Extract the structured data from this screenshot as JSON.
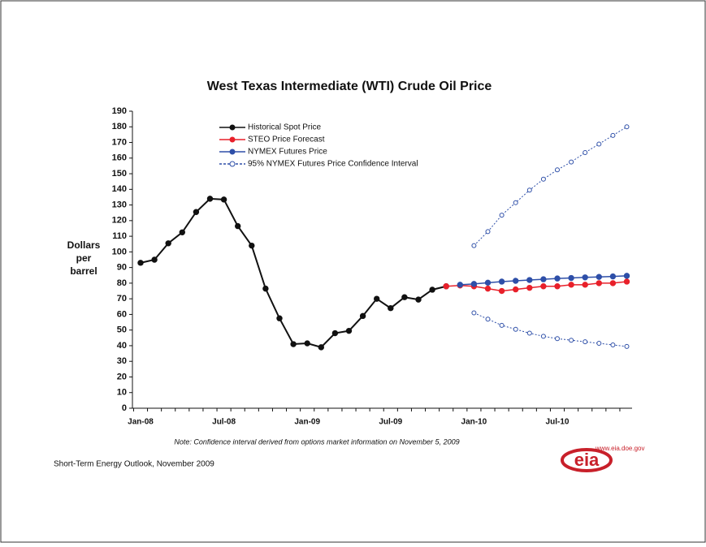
{
  "chart_data": {
    "type": "line",
    "title": "West Texas Intermediate (WTI) Crude Oil Price",
    "y_label": [
      "Dollars",
      "per",
      "barrel"
    ],
    "categories": [
      "Jan-08",
      null,
      null,
      null,
      null,
      null,
      "Jul-08",
      null,
      null,
      null,
      null,
      null,
      "Jan-09",
      null,
      null,
      null,
      null,
      null,
      "Jul-09",
      null,
      null,
      null,
      null,
      null,
      "Jan-10",
      null,
      null,
      null,
      null,
      null,
      "Jul-10",
      null,
      null,
      null,
      null,
      null
    ],
    "ylim": [
      0,
      190
    ],
    "yticks": [
      0,
      10,
      20,
      30,
      40,
      50,
      60,
      70,
      80,
      90,
      100,
      110,
      120,
      130,
      140,
      150,
      160,
      170,
      180,
      190
    ],
    "grid": false,
    "legend": "top-left",
    "series": [
      {
        "name": "Historical Spot Price",
        "color": "#111111",
        "style": "solid",
        "marker": "filled",
        "values": [
          93,
          95,
          105.5,
          112.5,
          125.5,
          134,
          133.5,
          116.5,
          104,
          76.5,
          57.5,
          41,
          41.5,
          39,
          48,
          49.5,
          59,
          70,
          64,
          71,
          69.5,
          75.8,
          78,
          null,
          null,
          null,
          null,
          null,
          null,
          null,
          null,
          null,
          null,
          null,
          null,
          null
        ]
      },
      {
        "name": "STEO Price Forecast",
        "color": "#e8202a",
        "style": "solid",
        "marker": "filled",
        "values": [
          null,
          null,
          null,
          null,
          null,
          null,
          null,
          null,
          null,
          null,
          null,
          null,
          null,
          null,
          null,
          null,
          null,
          null,
          null,
          null,
          null,
          null,
          78,
          78.5,
          78,
          76.5,
          75,
          76,
          77,
          78,
          78,
          79,
          79,
          80,
          80,
          81
        ]
      },
      {
        "name": "NYMEX Futures Price",
        "color": "#2e4fa8",
        "style": "solid",
        "marker": "filled",
        "values": [
          null,
          null,
          null,
          null,
          null,
          null,
          null,
          null,
          null,
          null,
          null,
          null,
          null,
          null,
          null,
          null,
          null,
          null,
          null,
          null,
          null,
          null,
          null,
          79,
          79.5,
          80.3,
          81,
          81.5,
          82,
          82.5,
          83,
          83.3,
          83.7,
          84,
          84.3,
          84.7
        ]
      },
      {
        "name": "95% NYMEX Futures Price Confidence Interval",
        "color": "#2e4fa8",
        "style": "dotted",
        "marker": "open",
        "values": [
          null,
          null,
          null,
          null,
          null,
          null,
          null,
          null,
          null,
          null,
          null,
          null,
          null,
          null,
          null,
          null,
          null,
          null,
          null,
          null,
          null,
          null,
          null,
          null,
          104,
          113,
          123.5,
          131.5,
          139.5,
          146.5,
          152.5,
          157.5,
          163.5,
          169,
          174.5,
          180
        ]
      },
      {
        "name": null,
        "color": "#2e4fa8",
        "style": "dotted",
        "marker": "open",
        "values": [
          null,
          null,
          null,
          null,
          null,
          null,
          null,
          null,
          null,
          null,
          null,
          null,
          null,
          null,
          null,
          null,
          null,
          null,
          null,
          null,
          null,
          null,
          null,
          null,
          61,
          57,
          53,
          50.5,
          48,
          46,
          44.5,
          43.5,
          42.5,
          41.5,
          40.5,
          39.5
        ]
      }
    ],
    "note": "Note: Confidence interval derived from options market information on November 5, 2009",
    "source": "Short-Term Energy Outlook, November 2009",
    "logo_text": "eia",
    "logo_url": "www.eia.doe.gov"
  }
}
